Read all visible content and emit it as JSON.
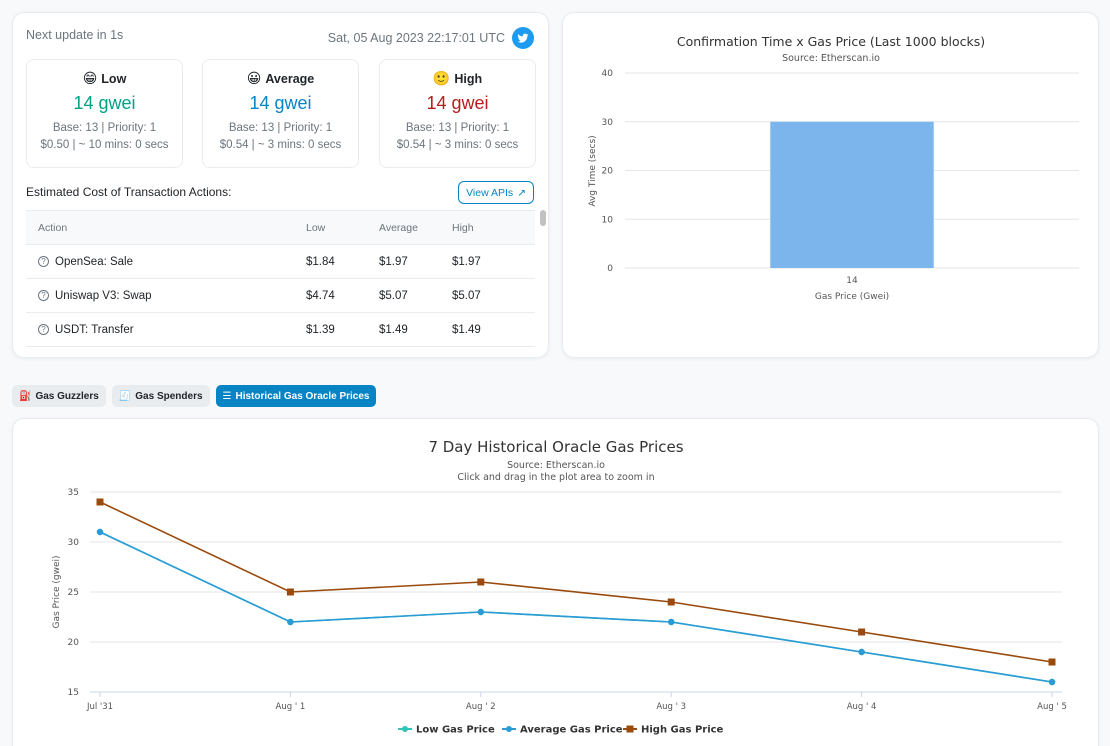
{
  "gas_tracker": {
    "next_update": "Next update in 1s",
    "timestamp": "Sat, 05 Aug 2023 22:17:01 UTC",
    "tiers": [
      {
        "emoji": "😁",
        "label": "Low",
        "price": "14 gwei",
        "base": "Base: 13 | Priority: 1",
        "cost": "$0.50 | ~ 10 mins: 0 secs",
        "color": "#00a186"
      },
      {
        "emoji": "😀",
        "label": "Average",
        "price": "14 gwei",
        "base": "Base: 13 | Priority: 1",
        "cost": "$0.54 | ~ 3 mins: 0 secs",
        "color": "#0784c3"
      },
      {
        "emoji": "🙂",
        "label": "High",
        "price": "14 gwei",
        "base": "Base: 13 | Priority: 1",
        "cost": "$0.54 | ~ 3 mins: 0 secs",
        "color": "#b91c1c"
      }
    ],
    "est_title": "Estimated Cost of Transaction Actions:",
    "view_apis": "View APIs",
    "table": {
      "headers": [
        "Action",
        "Low",
        "Average",
        "High"
      ],
      "rows": [
        [
          "OpenSea: Sale",
          "$1.84",
          "$1.97",
          "$1.97"
        ],
        [
          "Uniswap V3: Swap",
          "$4.74",
          "$5.07",
          "$5.07"
        ],
        [
          "USDT: Transfer",
          "$1.39",
          "$1.49",
          "$1.49"
        ]
      ]
    }
  },
  "tabs": [
    "Gas Guzzlers",
    "Gas Spenders",
    "Historical Gas Oracle Prices"
  ],
  "chart_data": [
    {
      "type": "bar",
      "title": "Confirmation Time x Gas Price (Last 1000 blocks)",
      "subtitle": "Source: Etherscan.io",
      "categories": [
        "14"
      ],
      "values": [
        30
      ],
      "xlabel": "Gas Price (Gwei)",
      "ylabel": "Avg Time (secs)",
      "ylim": [
        0,
        40
      ],
      "yticks": [
        0,
        10,
        20,
        30,
        40
      ],
      "color": "#7cb5ec"
    },
    {
      "type": "line",
      "title": "7 Day Historical Oracle Gas Prices",
      "subtitle": "Source: Etherscan.io",
      "subtitle2": "Click and drag in the plot area to zoom in",
      "x": [
        "Jul '31",
        "Aug ' 1",
        "Aug ' 2",
        "Aug ' 3",
        "Aug ' 4",
        "Aug ' 5"
      ],
      "ylabel": "Gas Price (gwei)",
      "ylim": [
        15,
        35
      ],
      "yticks": [
        15,
        20,
        25,
        30,
        35
      ],
      "series": [
        {
          "name": "Low Gas Price",
          "values": [
            31,
            22,
            23,
            22,
            19,
            16
          ],
          "color": "#2ec4b6"
        },
        {
          "name": "Average Gas Price",
          "values": [
            31,
            22,
            23,
            22,
            19,
            16
          ],
          "color": "#2b9bd6"
        },
        {
          "name": "High Gas Price",
          "values": [
            34,
            25,
            26,
            24,
            21,
            18
          ],
          "color": "#9a4a0c"
        }
      ]
    }
  ]
}
